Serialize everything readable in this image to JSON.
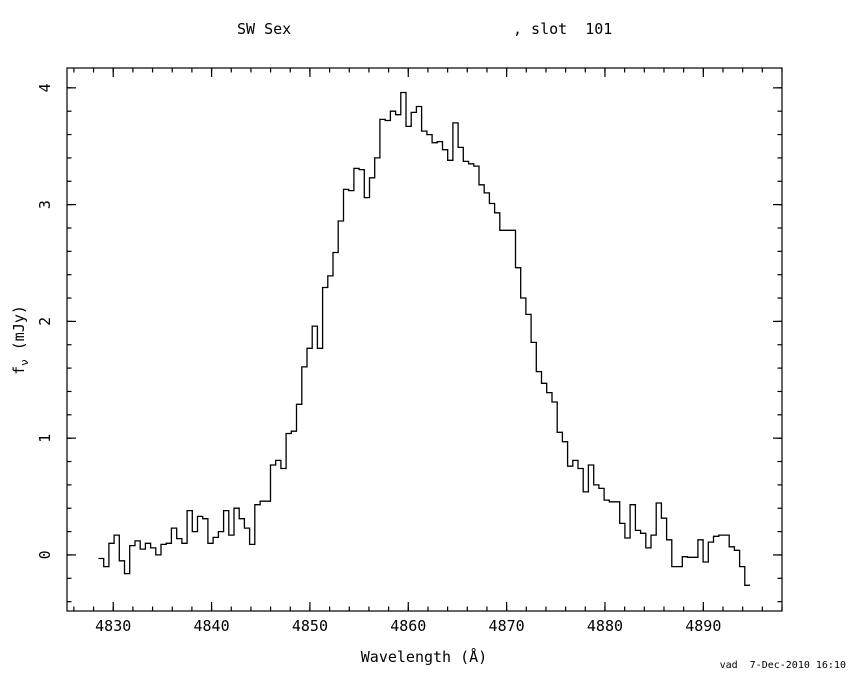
{
  "window": {
    "background": "#ffffff",
    "foreground": "#000000"
  },
  "header": {
    "title_left": "SW Sex",
    "title_right": ", slot  101"
  },
  "footer": {
    "credit": "vad  7-Dec-2010 16:10"
  },
  "chart_data": {
    "type": "line",
    "style": "histogram-step",
    "title": "SW Sex , slot 101",
    "xlabel": "Wavelength (Å)",
    "ylabel": "fν (mJy)",
    "ylabel_parts": {
      "base": "f",
      "subscript": "ν",
      "unit": " (mJy)"
    },
    "line_color": "#000000",
    "grid": false,
    "legend": null,
    "xlim": [
      4825.3,
      4898.0
    ],
    "ylim": [
      -0.48,
      4.17
    ],
    "x_major_ticks": [
      4830,
      4840,
      4850,
      4860,
      4870,
      4880,
      4890
    ],
    "x_tick_labels": [
      "4830",
      "4840",
      "4850",
      "4860",
      "4870",
      "4880",
      "4890"
    ],
    "x_minor_step": 2,
    "y_major_ticks": [
      0,
      1,
      2,
      3,
      4
    ],
    "y_tick_labels": [
      "0",
      "1",
      "2",
      "3",
      "4"
    ],
    "y_minor_step": 0.2,
    "series": [
      {
        "name": "spectrum",
        "x_start": 4828.5,
        "bin_width": 0.53,
        "flux_mjy": [
          -0.03,
          -0.1,
          0.1,
          0.17,
          -0.05,
          -0.16,
          0.08,
          0.12,
          0.05,
          0.1,
          0.06,
          0.0,
          0.09,
          0.1,
          0.23,
          0.14,
          0.1,
          0.38,
          0.2,
          0.33,
          0.31,
          0.1,
          0.15,
          0.2,
          0.38,
          0.17,
          0.4,
          0.31,
          0.23,
          0.09,
          0.43,
          0.46,
          0.46,
          0.77,
          0.81,
          0.74,
          1.04,
          1.06,
          1.29,
          1.61,
          1.77,
          1.96,
          1.77,
          2.29,
          2.39,
          2.59,
          2.86,
          3.13,
          3.12,
          3.31,
          3.3,
          3.06,
          3.23,
          3.4,
          3.73,
          3.72,
          3.8,
          3.77,
          3.96,
          3.67,
          3.79,
          3.84,
          3.63,
          3.6,
          3.53,
          3.54,
          3.47,
          3.38,
          3.7,
          3.49,
          3.37,
          3.35,
          3.33,
          3.17,
          3.1,
          3.01,
          2.93,
          2.78,
          2.78,
          2.78,
          2.46,
          2.2,
          2.06,
          1.82,
          1.57,
          1.47,
          1.39,
          1.31,
          1.05,
          0.97,
          0.76,
          0.81,
          0.74,
          0.54,
          0.77,
          0.6,
          0.57,
          0.47,
          0.455,
          0.455,
          0.27,
          0.145,
          0.43,
          0.21,
          0.185,
          0.06,
          0.17,
          0.445,
          0.315,
          0.13,
          -0.1,
          -0.1,
          -0.015,
          -0.02,
          -0.02,
          0.13,
          -0.06,
          0.11,
          0.16,
          0.17,
          0.17,
          0.07,
          0.04,
          -0.1,
          -0.26
        ]
      }
    ]
  }
}
